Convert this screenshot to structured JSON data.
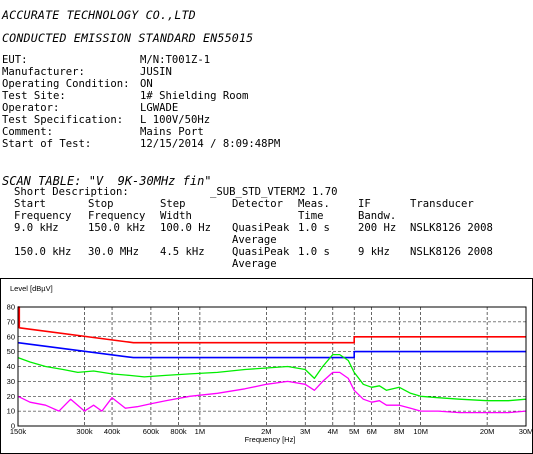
{
  "header": {
    "company": "ACCURATE TECHNOLOGY CO.,LTD",
    "standard": "CONDUCTED EMISSION STANDARD EN55015"
  },
  "info": [
    {
      "label": "EUT:",
      "value": "M/N:T001Z-1"
    },
    {
      "label": "Manufacturer:",
      "value": "JUSIN"
    },
    {
      "label": "Operating Condition:",
      "value": "ON"
    },
    {
      "label": "Test Site:",
      "value": "1# Shielding Room"
    },
    {
      "label": "Operator:",
      "value": "LGWADE"
    },
    {
      "label": "Test Specification:",
      "value": "L 100V/50Hz"
    },
    {
      "label": "Comment:",
      "value": "Mains Port"
    },
    {
      "label": "Start of Test:",
      "value": "12/15/2014 / 8:09:48PM"
    }
  ],
  "scan": {
    "title": "SCAN TABLE: \"V  9K-30MHz fin\"",
    "short_desc_label": "Short Description:",
    "short_desc_value": "_SUB_STD_VTERM2 1.70",
    "headers": {
      "start1": "Start",
      "start2": "Frequency",
      "stop1": "Stop",
      "stop2": "Frequency",
      "step1": "Step",
      "step2": "Width",
      "detector": "Detector",
      "meas1": "Meas.",
      "meas2": "Time",
      "if1": "IF",
      "if2": "Bandw.",
      "transducer": "Transducer"
    },
    "rows": [
      {
        "start": "9.0 kHz",
        "stop": "150.0 kHz",
        "step": "100.0 Hz",
        "det1": "QuasiPeak",
        "det2": "Average",
        "meas": "1.0 s",
        "ifbw": "200 Hz",
        "trans": "NSLK8126 2008"
      },
      {
        "start": "150.0 kHz",
        "stop": "30.0 MHz",
        "step": "4.5 kHz",
        "det1": "QuasiPeak",
        "det2": "Average",
        "meas": "1.0 s",
        "ifbw": "9 kHz",
        "trans": "NSLK8126 2008"
      }
    ]
  },
  "chart_data": {
    "type": "line",
    "ylabel": "Level [dBµV]",
    "xlabel": "Frequency [Hz]",
    "xscale": "log",
    "xlim": [
      150000,
      30000000
    ],
    "ylim": [
      0,
      80
    ],
    "yticks": [
      0,
      10,
      20,
      30,
      40,
      50,
      60,
      70,
      80
    ],
    "xticks": [
      {
        "v": 150000,
        "label": "150k"
      },
      {
        "v": 300000,
        "label": "300k"
      },
      {
        "v": 400000,
        "label": "400k"
      },
      {
        "v": 600000,
        "label": "600k"
      },
      {
        "v": 800000,
        "label": "800k"
      },
      {
        "v": 1000000,
        "label": "1M"
      },
      {
        "v": 2000000,
        "label": "2M"
      },
      {
        "v": 3000000,
        "label": "3M"
      },
      {
        "v": 4000000,
        "label": "4M"
      },
      {
        "v": 5000000,
        "label": "5M"
      },
      {
        "v": 6000000,
        "label": "6M"
      },
      {
        "v": 8000000,
        "label": "8M"
      },
      {
        "v": 10000000,
        "label": "10M"
      },
      {
        "v": 20000000,
        "label": "20M"
      },
      {
        "v": 30000000,
        "label": "30M"
      }
    ],
    "grid": true,
    "series": [
      {
        "color": "#ff0000",
        "x": [
          150000,
          152000,
          152000,
          500000,
          5000000,
          5000000,
          30000000
        ],
        "y": [
          80,
          80,
          66,
          56,
          56,
          60,
          60
        ]
      },
      {
        "color": "#0000ff",
        "x": [
          150000,
          500000,
          5000000,
          5000000,
          30000000
        ],
        "y": [
          56,
          46,
          46,
          50,
          50
        ]
      },
      {
        "color": "#00ee00",
        "x": [
          150000,
          170000,
          200000,
          240000,
          280000,
          330000,
          400000,
          480000,
          560000,
          700000,
          900000,
          1200000,
          1600000,
          2000000,
          2500000,
          3000000,
          3300000,
          3600000,
          4000000,
          4300000,
          4700000,
          5000000,
          5500000,
          6000000,
          6500000,
          7000000,
          8000000,
          9000000,
          10000000,
          12000000,
          15000000,
          20000000,
          25000000,
          30000000
        ],
        "y": [
          46,
          43,
          40,
          38,
          36,
          37,
          35,
          34,
          33,
          34,
          35,
          36,
          38,
          39,
          40,
          38,
          32,
          40,
          48,
          48,
          44,
          36,
          28,
          26,
          27,
          24,
          26,
          22,
          20,
          19,
          18,
          17,
          17,
          18
        ]
      },
      {
        "color": "#ff00ff",
        "x": [
          150000,
          170000,
          200000,
          230000,
          260000,
          300000,
          330000,
          360000,
          400000,
          460000,
          520000,
          600000,
          700000,
          900000,
          1200000,
          1600000,
          2000000,
          2500000,
          3000000,
          3300000,
          3600000,
          4000000,
          4300000,
          4700000,
          5000000,
          5500000,
          6000000,
          6500000,
          7000000,
          8000000,
          9000000,
          10000000,
          12000000,
          15000000,
          20000000,
          25000000,
          30000000
        ],
        "y": [
          20,
          16,
          14,
          10,
          18,
          10,
          14,
          10,
          19,
          12,
          13,
          15,
          17,
          20,
          22,
          25,
          28,
          30,
          28,
          24,
          30,
          36,
          36,
          32,
          24,
          18,
          16,
          17,
          14,
          14,
          12,
          10,
          10,
          9,
          9,
          9,
          10
        ]
      }
    ]
  }
}
